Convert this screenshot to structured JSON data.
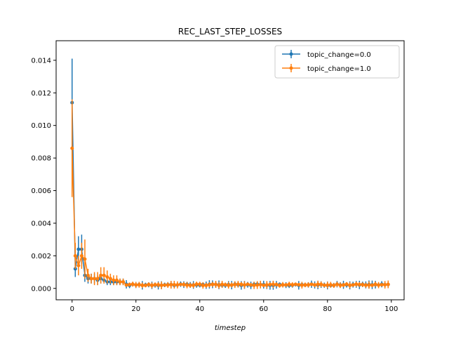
{
  "chart_data": {
    "type": "line",
    "title": "REC_LAST_STEP_LOSSES",
    "xlabel": "timestep",
    "ylabel": "",
    "xlim": [
      -5,
      104
    ],
    "ylim": [
      -0.0007,
      0.0152
    ],
    "x_ticks": [
      0,
      20,
      40,
      60,
      80,
      100
    ],
    "y_ticks": [
      0.0,
      0.002,
      0.004,
      0.006,
      0.008,
      0.01,
      0.012,
      0.014
    ],
    "y_tick_labels": [
      "0.000",
      "0.002",
      "0.004",
      "0.006",
      "0.008",
      "0.010",
      "0.012",
      "0.014"
    ],
    "grid": false,
    "legend_position": "upper right",
    "error_bars": true,
    "series": [
      {
        "name": "topic_change=0.0",
        "color": "#1f77b4",
        "head_x": [
          0,
          1,
          2,
          3,
          4,
          5,
          6,
          7,
          8,
          9,
          10,
          11,
          12,
          13,
          14,
          15,
          16
        ],
        "head_y": [
          0.0114,
          0.0012,
          0.0024,
          0.0024,
          0.0008,
          0.0006,
          0.0006,
          0.0006,
          0.0005,
          0.0006,
          0.0005,
          0.0004,
          0.0004,
          0.0004,
          0.0004,
          0.0004,
          0.0004
        ],
        "head_err": [
          0.0027,
          0.0005,
          0.0008,
          0.0009,
          0.0004,
          0.0003,
          0.0003,
          0.0003,
          0.0003,
          0.0003,
          0.0002,
          0.0002,
          0.0002,
          0.0002,
          0.0002,
          0.0002,
          0.0002
        ],
        "tail_start": 17,
        "tail_end": 99,
        "tail_level": 0.00022,
        "tail_err": 0.00018
      },
      {
        "name": "topic_change=1.0",
        "color": "#ff7f0e",
        "head_x": [
          0,
          1,
          2,
          3,
          4,
          5,
          6,
          7,
          8,
          9,
          10,
          11,
          12,
          13,
          14,
          15,
          16
        ],
        "head_y": [
          0.0086,
          0.002,
          0.0014,
          0.002,
          0.0018,
          0.0008,
          0.0006,
          0.0006,
          0.0006,
          0.0008,
          0.0008,
          0.0007,
          0.0006,
          0.0005,
          0.0005,
          0.0004,
          0.0004
        ],
        "head_err": [
          0.003,
          0.0008,
          0.0006,
          0.0008,
          0.0012,
          0.0004,
          0.0003,
          0.0004,
          0.0004,
          0.0005,
          0.0005,
          0.0004,
          0.0003,
          0.0003,
          0.0003,
          0.0002,
          0.0002
        ],
        "tail_start": 17,
        "tail_end": 99,
        "tail_level": 0.00022,
        "tail_err": 0.00016
      }
    ]
  }
}
